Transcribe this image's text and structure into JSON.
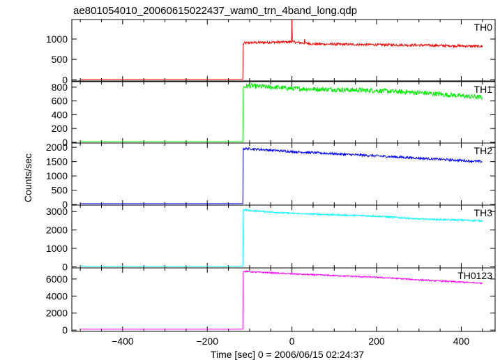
{
  "chart_data": {
    "type": "line",
    "title": "ae801054010_20060615022437_wam0_trn_4band_long.qdp",
    "xlabel": "Time [sec] 0 = 2006/06/15 02:24:37",
    "ylabel": "Counts/sec",
    "xlim": [
      -520,
      480
    ],
    "xticks": [
      -400,
      -200,
      0,
      200,
      400
    ],
    "xtick_labels": [
      "−400",
      "−200",
      "0",
      "200",
      "400"
    ],
    "x_range": [
      -500,
      450
    ],
    "onset_time": -115,
    "panels": [
      {
        "name": "TH0",
        "color": "#ff0000",
        "ylim": [
          -30,
          1480
        ],
        "yticks": [
          0,
          500,
          1000
        ],
        "ytick_labels": [
          "0",
          "500",
          "1000"
        ],
        "baseline": 10,
        "profile": [
          [
            -115,
            870
          ],
          [
            -113,
            900
          ],
          [
            -100,
            910
          ],
          [
            0,
            930
          ],
          [
            50,
            880
          ],
          [
            200,
            860
          ],
          [
            300,
            850
          ],
          [
            450,
            820
          ]
        ],
        "noise": 30,
        "features": [
          {
            "x": 0,
            "y": 1480
          },
          {
            "x": 30,
            "y": 1000
          }
        ]
      },
      {
        "name": "TH1",
        "color": "#00ee00",
        "ylim": [
          -10,
          880
        ],
        "yticks": [
          0,
          200,
          400,
          600,
          800
        ],
        "ytick_labels": [
          "0",
          "200",
          "400",
          "600",
          "800"
        ],
        "baseline": 10,
        "profile": [
          [
            -115,
            800
          ],
          [
            -100,
            820
          ],
          [
            0,
            780
          ],
          [
            200,
            750
          ],
          [
            300,
            720
          ],
          [
            450,
            650
          ]
        ],
        "noise": 35,
        "features": []
      },
      {
        "name": "TH2",
        "color": "#0000ff",
        "ylim": [
          -20,
          2150
        ],
        "yticks": [
          0,
          500,
          1000,
          1500,
          2000
        ],
        "ytick_labels": [
          "0",
          "500",
          "1000",
          "1500",
          "2000"
        ],
        "baseline": 30,
        "profile": [
          [
            -115,
            1950
          ],
          [
            -100,
            1950
          ],
          [
            0,
            1850
          ],
          [
            200,
            1700
          ],
          [
            300,
            1620
          ],
          [
            450,
            1500
          ]
        ],
        "noise": 40,
        "features": []
      },
      {
        "name": "TH3",
        "color": "#00ffff",
        "ylim": [
          -60,
          3350
        ],
        "yticks": [
          0,
          1000,
          2000,
          3000
        ],
        "ytick_labels": [
          "0",
          "1000",
          "2000",
          "3000"
        ],
        "baseline": 30,
        "profile": [
          [
            -115,
            3100
          ],
          [
            -100,
            3050
          ],
          [
            0,
            2900
          ],
          [
            200,
            2750
          ],
          [
            300,
            2600
          ],
          [
            450,
            2500
          ]
        ],
        "noise": 45,
        "features": []
      },
      {
        "name": "TH0123",
        "color": "#ff00ff",
        "ylim": [
          -150,
          7300
        ],
        "yticks": [
          0,
          2000,
          4000,
          6000
        ],
        "ytick_labels": [
          "0",
          "2000",
          "4000",
          "6000"
        ],
        "baseline": 100,
        "profile": [
          [
            -115,
            6900
          ],
          [
            -100,
            6850
          ],
          [
            0,
            6600
          ],
          [
            200,
            6200
          ],
          [
            300,
            5900
          ],
          [
            450,
            5500
          ]
        ],
        "noise": 80,
        "features": []
      }
    ]
  }
}
